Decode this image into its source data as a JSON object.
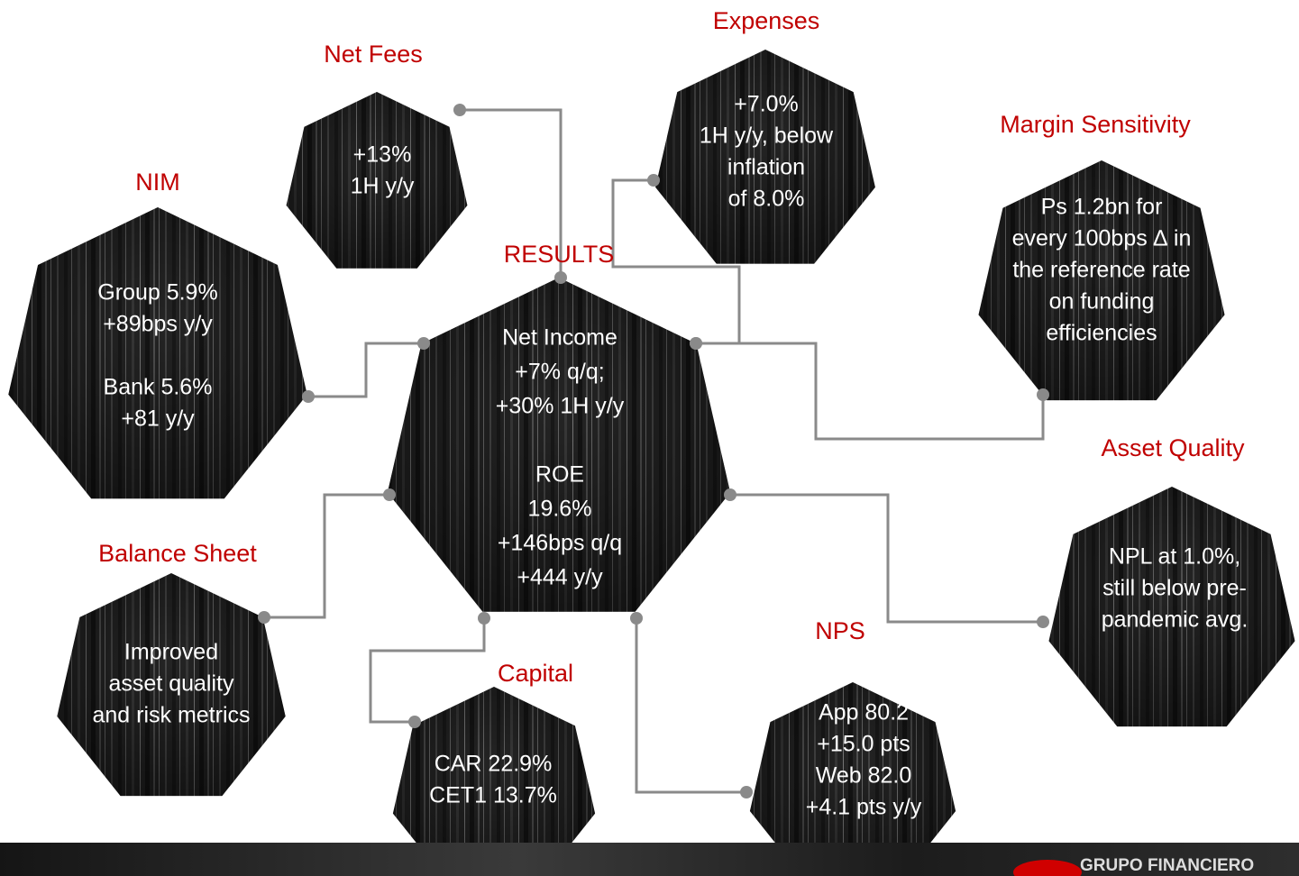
{
  "nodes": [
    {
      "title": "Net Fees",
      "body": [
        [
          "+13%",
          "1H y/y"
        ]
      ]
    },
    {
      "title": "Expenses",
      "body": [
        [
          "+7.0%",
          "1H y/y, below",
          "inflation",
          "of 8.0%"
        ]
      ]
    },
    {
      "title": "Margin Sensitivity",
      "body": [
        [
          "Ps 1.2bn for",
          "every 100bps ∆ in",
          "the reference rate",
          "on funding",
          "efficiencies"
        ]
      ]
    },
    {
      "title": "NIM",
      "body": [
        [
          "Group 5.9%",
          "+89bps  y/y"
        ],
        [
          "Bank 5.6%",
          "+81 y/y"
        ]
      ]
    },
    {
      "title": "RESULTS",
      "body": [
        [
          "Net Income",
          "+7% q/q;",
          "+30% 1H y/y"
        ],
        [
          "ROE",
          "19.6%",
          "+146bps q/q",
          "+444 y/y"
        ]
      ]
    },
    {
      "title": "Balance Sheet",
      "body": [
        [
          "Improved",
          "asset quality",
          "and risk metrics"
        ]
      ]
    },
    {
      "title": "Capital",
      "body": [
        [
          "CAR 22.9%",
          "CET1 13.7%"
        ]
      ]
    },
    {
      "title": "NPS",
      "body": [
        [
          "App 80.2",
          "+15.0 pts",
          "Web 82.0",
          "+4.1 pts y/y"
        ]
      ]
    },
    {
      "title": "Asset Quality",
      "body": [
        [
          "NPL at 1.0%,",
          "still below pre-",
          "pandemic avg."
        ]
      ]
    }
  ],
  "footer": {
    "logo": "GRUPO FINANCIERO"
  }
}
